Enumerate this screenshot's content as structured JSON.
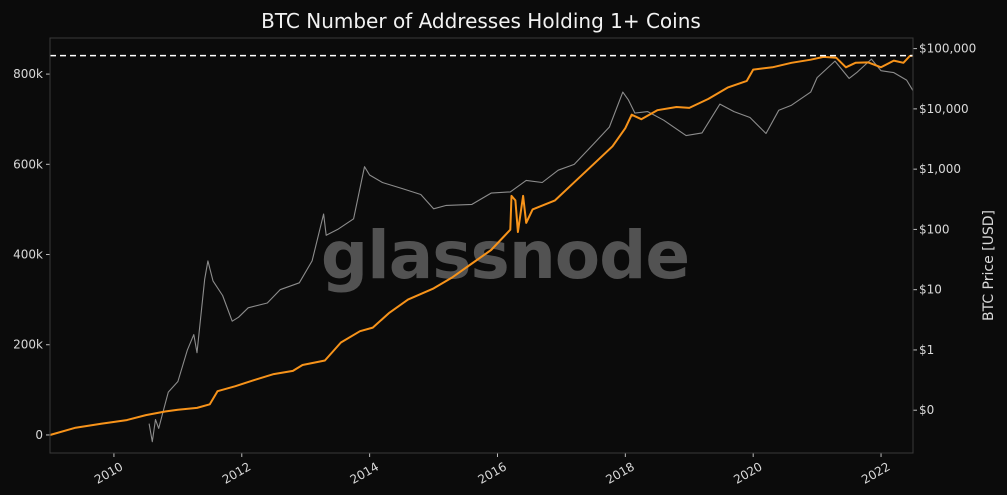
{
  "chart_data": {
    "type": "line",
    "title": "BTC Number of Addresses Holding 1+ Coins",
    "watermark": "glassnode",
    "y2label": "BTC Price [USD]",
    "y_ticks": [
      {
        "value": 0,
        "label": "0"
      },
      {
        "value": 200000,
        "label": "200k"
      },
      {
        "value": 400000,
        "label": "400k"
      },
      {
        "value": 600000,
        "label": "600k"
      },
      {
        "value": 800000,
        "label": "800k"
      }
    ],
    "y2_ticks": [
      {
        "value": 0.1,
        "label": "$0"
      },
      {
        "value": 1,
        "label": "$1"
      },
      {
        "value": 10,
        "label": "$10"
      },
      {
        "value": 100,
        "label": "$100"
      },
      {
        "value": 1000,
        "label": "$1,000"
      },
      {
        "value": 10000,
        "label": "$10,000"
      },
      {
        "value": 100000,
        "label": "$100,000"
      }
    ],
    "x_ticks": [
      {
        "value": 2010,
        "label": "2010"
      },
      {
        "value": 2012,
        "label": "2012"
      },
      {
        "value": 2014,
        "label": "2014"
      },
      {
        "value": 2016,
        "label": "2016"
      },
      {
        "value": 2018,
        "label": "2018"
      },
      {
        "value": 2020,
        "label": "2020"
      },
      {
        "value": 2022,
        "label": "2022"
      }
    ],
    "xlim": [
      2009.0,
      2022.5
    ],
    "ylim": [
      -40000,
      880000
    ],
    "y2lim": [
      0.0195,
      150000
    ],
    "y2_scale": "log",
    "grid": false,
    "reference_line": {
      "value": 841000,
      "style": "dashed",
      "color": "#ffffff"
    },
    "series": [
      {
        "color": "#f7931a",
        "axis": "left",
        "points": [
          [
            2009.0,
            0
          ],
          [
            2009.4,
            16000
          ],
          [
            2009.8,
            25000
          ],
          [
            2010.2,
            33000
          ],
          [
            2010.5,
            44000
          ],
          [
            2010.8,
            52000
          ],
          [
            2011.0,
            56000
          ],
          [
            2011.3,
            60000
          ],
          [
            2011.5,
            68000
          ],
          [
            2011.62,
            97000
          ],
          [
            2011.9,
            108000
          ],
          [
            2012.2,
            122000
          ],
          [
            2012.5,
            135000
          ],
          [
            2012.8,
            142000
          ],
          [
            2012.95,
            155000
          ],
          [
            2013.3,
            165000
          ],
          [
            2013.55,
            205000
          ],
          [
            2013.85,
            230000
          ],
          [
            2014.05,
            238000
          ],
          [
            2014.3,
            270000
          ],
          [
            2014.6,
            300000
          ],
          [
            2015.0,
            325000
          ],
          [
            2015.3,
            350000
          ],
          [
            2015.6,
            380000
          ],
          [
            2015.9,
            410000
          ],
          [
            2016.1,
            440000
          ],
          [
            2016.2,
            455000
          ],
          [
            2016.22,
            530000
          ],
          [
            2016.28,
            520000
          ],
          [
            2016.32,
            450000
          ],
          [
            2016.4,
            530000
          ],
          [
            2016.45,
            470000
          ],
          [
            2016.55,
            500000
          ],
          [
            2016.9,
            520000
          ],
          [
            2017.2,
            560000
          ],
          [
            2017.5,
            600000
          ],
          [
            2017.8,
            640000
          ],
          [
            2018.0,
            680000
          ],
          [
            2018.1,
            710000
          ],
          [
            2018.25,
            700000
          ],
          [
            2018.5,
            720000
          ],
          [
            2018.8,
            727000
          ],
          [
            2019.0,
            725000
          ],
          [
            2019.3,
            745000
          ],
          [
            2019.6,
            770000
          ],
          [
            2019.9,
            785000
          ],
          [
            2020.0,
            810000
          ],
          [
            2020.3,
            815000
          ],
          [
            2020.6,
            825000
          ],
          [
            2020.9,
            832000
          ],
          [
            2021.1,
            838000
          ],
          [
            2021.3,
            836000
          ],
          [
            2021.45,
            815000
          ],
          [
            2021.6,
            825000
          ],
          [
            2021.8,
            826000
          ],
          [
            2022.0,
            815000
          ],
          [
            2022.2,
            830000
          ],
          [
            2022.35,
            825000
          ],
          [
            2022.45,
            840000
          ],
          [
            2022.5,
            841000
          ]
        ]
      },
      {
        "color": "#8c8c8c",
        "axis": "right",
        "points": [
          [
            2010.55,
            0.06
          ],
          [
            2010.6,
            0.03
          ],
          [
            2010.65,
            0.07
          ],
          [
            2010.7,
            0.05
          ],
          [
            2010.75,
            0.08
          ],
          [
            2010.85,
            0.2
          ],
          [
            2011.0,
            0.3
          ],
          [
            2011.15,
            1.0
          ],
          [
            2011.25,
            1.8
          ],
          [
            2011.3,
            0.9
          ],
          [
            2011.42,
            15
          ],
          [
            2011.47,
            30
          ],
          [
            2011.55,
            14
          ],
          [
            2011.7,
            8
          ],
          [
            2011.85,
            3
          ],
          [
            2011.95,
            3.5
          ],
          [
            2012.1,
            5
          ],
          [
            2012.4,
            6
          ],
          [
            2012.6,
            10
          ],
          [
            2012.9,
            13
          ],
          [
            2013.1,
            30
          ],
          [
            2013.28,
            180
          ],
          [
            2013.32,
            80
          ],
          [
            2013.5,
            100
          ],
          [
            2013.75,
            150
          ],
          [
            2013.88,
            700
          ],
          [
            2013.92,
            1100
          ],
          [
            2014.0,
            800
          ],
          [
            2014.2,
            600
          ],
          [
            2014.5,
            480
          ],
          [
            2014.8,
            380
          ],
          [
            2015.0,
            220
          ],
          [
            2015.2,
            250
          ],
          [
            2015.6,
            260
          ],
          [
            2015.9,
            400
          ],
          [
            2016.2,
            420
          ],
          [
            2016.45,
            650
          ],
          [
            2016.7,
            600
          ],
          [
            2016.95,
            960
          ],
          [
            2017.2,
            1200
          ],
          [
            2017.5,
            2600
          ],
          [
            2017.75,
            5000
          ],
          [
            2017.96,
            19000
          ],
          [
            2018.05,
            14000
          ],
          [
            2018.15,
            8500
          ],
          [
            2018.35,
            9000
          ],
          [
            2018.6,
            6500
          ],
          [
            2018.95,
            3600
          ],
          [
            2019.2,
            4000
          ],
          [
            2019.48,
            12000
          ],
          [
            2019.7,
            9000
          ],
          [
            2019.95,
            7200
          ],
          [
            2020.2,
            3900
          ],
          [
            2020.4,
            9500
          ],
          [
            2020.6,
            11500
          ],
          [
            2020.9,
            19000
          ],
          [
            2021.0,
            33000
          ],
          [
            2021.28,
            62000
          ],
          [
            2021.5,
            32000
          ],
          [
            2021.62,
            40000
          ],
          [
            2021.85,
            67000
          ],
          [
            2022.0,
            43000
          ],
          [
            2022.2,
            40000
          ],
          [
            2022.4,
            30000
          ],
          [
            2022.5,
            20000
          ]
        ]
      }
    ]
  }
}
